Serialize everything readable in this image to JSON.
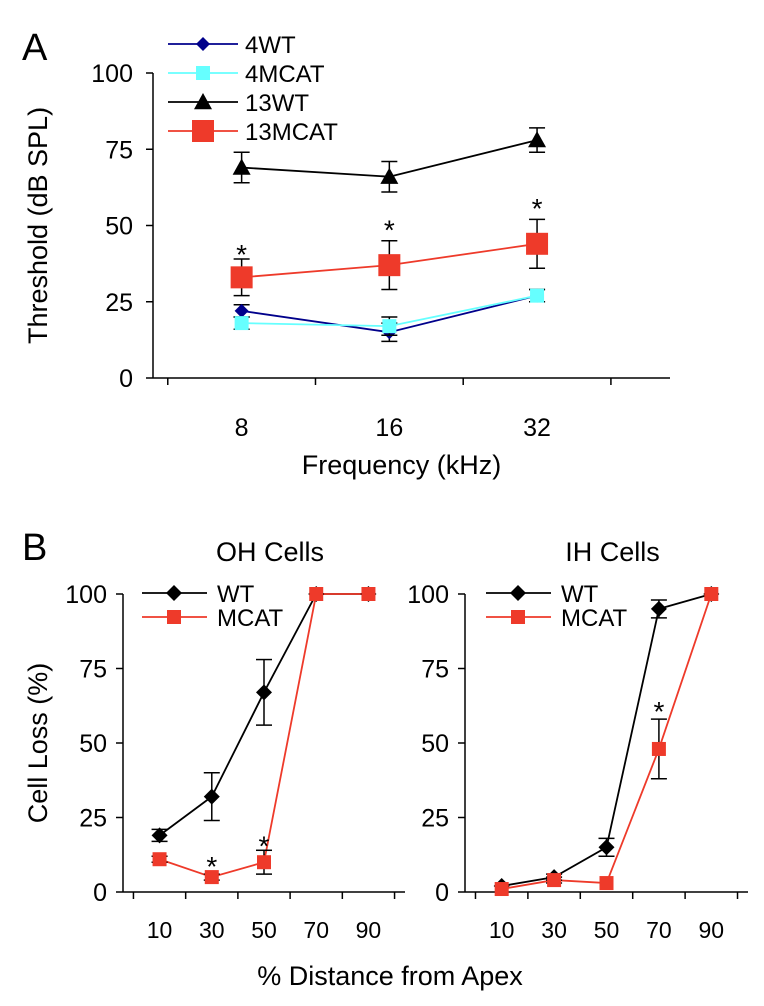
{
  "chart_data": [
    {
      "panel_label": "A",
      "type": "line",
      "xlabel": "Frequency (kHz)",
      "ylabel": "Threshold (dB SPL)",
      "ylim": [
        0,
        100
      ],
      "yticks": [
        "0",
        "25",
        "50",
        "75",
        "100"
      ],
      "categories": [
        "8",
        "16",
        "32"
      ],
      "legend_position": "top-left",
      "series": [
        {
          "name": "4WT",
          "color": "#00008b",
          "marker": "diamond",
          "values": [
            22,
            15,
            27
          ],
          "errors": [
            2,
            3,
            2
          ]
        },
        {
          "name": "4MCAT",
          "color": "#66ffff",
          "marker": "square",
          "values": [
            18,
            17,
            27
          ],
          "errors": [
            2,
            3,
            2
          ]
        },
        {
          "name": "13WT",
          "color": "#000000",
          "marker": "triangle",
          "values": [
            69,
            66,
            78
          ],
          "errors": [
            5,
            5,
            4
          ]
        },
        {
          "name": "13MCAT",
          "color": "#ee3a2a",
          "marker": "square",
          "values": [
            33,
            37,
            44
          ],
          "errors": [
            6,
            8,
            8
          ]
        }
      ],
      "annotations": [
        {
          "text": "*",
          "x": "8",
          "y": 42
        },
        {
          "text": "*",
          "x": "16",
          "y": 50
        },
        {
          "text": "*",
          "x": "32",
          "y": 57
        }
      ]
    },
    {
      "panel_label": "B",
      "type": "line",
      "title": "OH Cells",
      "xlabel": "% Distance from Apex",
      "ylabel": "Cell Loss (%)",
      "ylim": [
        0,
        100
      ],
      "yticks": [
        "0",
        "25",
        "50",
        "75",
        "100"
      ],
      "xticks": [
        "10",
        "30",
        "50",
        "70",
        "90"
      ],
      "legend_position": "top-left",
      "series": [
        {
          "name": "WT",
          "color": "#000000",
          "marker": "diamond",
          "x": [
            10,
            30,
            50,
            70,
            90
          ],
          "values": [
            19,
            32,
            67,
            100,
            100
          ],
          "errors": [
            2,
            8,
            11,
            0,
            0
          ]
        },
        {
          "name": "MCAT",
          "color": "#ee3a2a",
          "marker": "square",
          "x": [
            10,
            30,
            50,
            70,
            90
          ],
          "values": [
            11,
            5,
            10,
            100,
            100
          ],
          "errors": [
            1,
            1,
            4,
            0,
            0
          ]
        }
      ],
      "annotations": [
        {
          "text": "*",
          "x": 30,
          "y": 10
        },
        {
          "text": "*",
          "x": 50,
          "y": 17
        }
      ]
    },
    {
      "type": "line",
      "title": "IH Cells",
      "ylim": [
        0,
        100
      ],
      "yticks": [
        "0",
        "25",
        "50",
        "75",
        "100"
      ],
      "xticks": [
        "10",
        "30",
        "50",
        "70",
        "90"
      ],
      "legend_position": "top-left",
      "series": [
        {
          "name": "WT",
          "color": "#000000",
          "marker": "diamond",
          "x": [
            10,
            30,
            50,
            70,
            90
          ],
          "values": [
            2,
            5,
            15,
            95,
            100
          ],
          "errors": [
            0,
            1,
            3,
            3,
            0
          ]
        },
        {
          "name": "MCAT",
          "color": "#ee3a2a",
          "marker": "square",
          "x": [
            10,
            30,
            50,
            70,
            90
          ],
          "values": [
            1,
            4,
            3,
            48,
            100
          ],
          "errors": [
            0,
            1,
            0,
            10,
            0
          ]
        }
      ],
      "annotations": [
        {
          "text": "*",
          "x": 70,
          "y": 62
        }
      ]
    }
  ]
}
